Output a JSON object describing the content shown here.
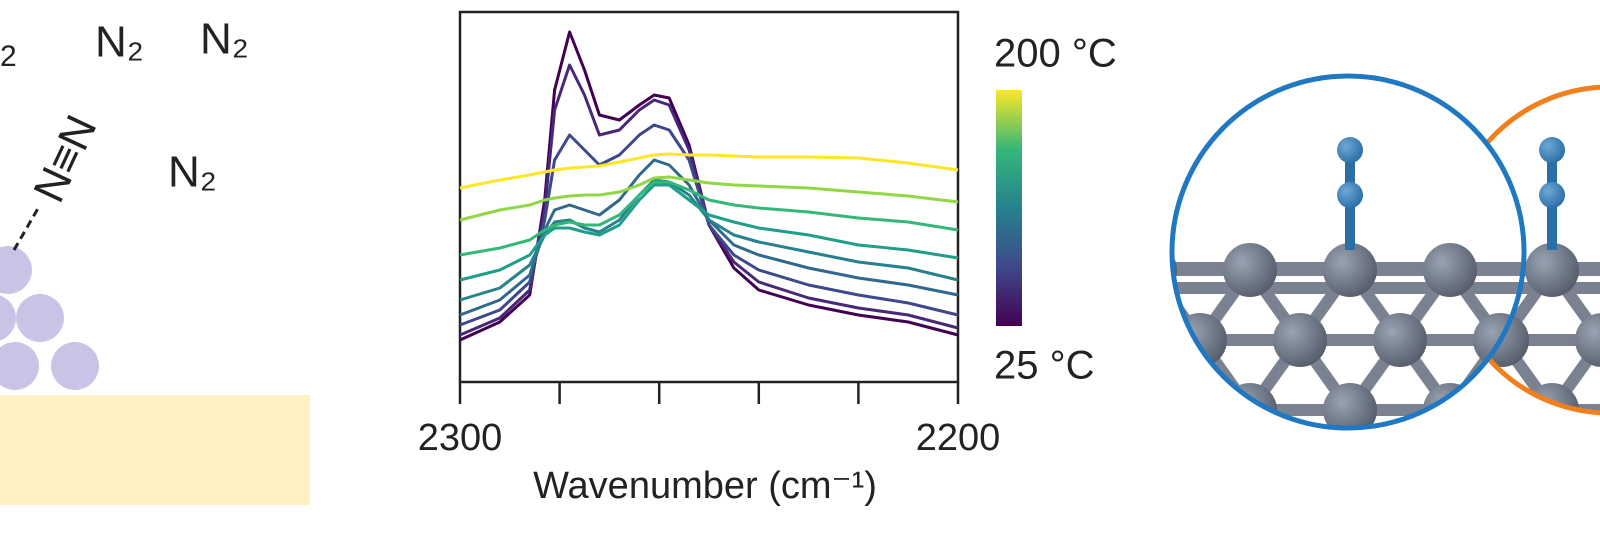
{
  "chart_data": {
    "type": "line",
    "xlabel": "Wavenumber (cm⁻¹)",
    "x": [
      2300,
      2292,
      2286,
      2283,
      2281,
      2278,
      2275,
      2272,
      2268,
      2264,
      2261,
      2258,
      2254,
      2250,
      2245,
      2240,
      2230,
      2220,
      2210,
      2200
    ],
    "xlim": [
      2300,
      2200
    ],
    "xticks": [
      2300,
      2200
    ],
    "xminorticks": [
      2280,
      2260,
      2240,
      2220
    ],
    "ylim": [
      0,
      370
    ],
    "series": [
      {
        "color": "#440154",
        "values": [
          42,
          60,
          87,
          182,
          292,
          350,
          312,
          267,
          262,
          277,
          287,
          284,
          237,
          157,
          114,
          92,
          77,
          67,
          60,
          47
        ]
      },
      {
        "color": "#482878",
        "values": [
          47,
          64,
          92,
          172,
          272,
          317,
          287,
          247,
          252,
          272,
          282,
          277,
          232,
          157,
          120,
          100,
          84,
          74,
          67,
          54
        ]
      },
      {
        "color": "#3e4989",
        "values": [
          57,
          72,
          100,
          162,
          222,
          247,
          232,
          217,
          227,
          247,
          257,
          252,
          222,
          157,
          127,
          112,
          97,
          87,
          79,
          67
        ]
      },
      {
        "color": "#31688e",
        "values": [
          67,
          82,
          107,
          152,
          172,
          177,
          172,
          167,
          182,
          207,
          222,
          217,
          197,
          162,
          137,
          127,
          114,
          104,
          97,
          87
        ]
      },
      {
        "color": "#26828e",
        "values": [
          82,
          94,
          117,
          147,
          160,
          162,
          154,
          150,
          162,
          187,
          202,
          200,
          187,
          162,
          147,
          140,
          130,
          120,
          114,
          102
        ]
      },
      {
        "color": "#1f9e89",
        "values": [
          102,
          112,
          127,
          147,
          154,
          154,
          150,
          147,
          157,
          182,
          197,
          197,
          182,
          167,
          160,
          154,
          147,
          137,
          132,
          124
        ]
      },
      {
        "color": "#35b779",
        "values": [
          127,
          134,
          142,
          152,
          157,
          160,
          157,
          157,
          167,
          187,
          200,
          200,
          192,
          182,
          177,
          174,
          170,
          164,
          160,
          152
        ]
      },
      {
        "color": "#90d743",
        "values": [
          162,
          172,
          177,
          182,
          184,
          186,
          187,
          187,
          190,
          197,
          204,
          205,
          202,
          199,
          197,
          196,
          194,
          190,
          186,
          180
        ]
      },
      {
        "color": "#fde725",
        "values": [
          194,
          202,
          207,
          210,
          212,
          214,
          215,
          216,
          220,
          224,
          227,
          228,
          227,
          227,
          226,
          225,
          225,
          224,
          219,
          212
        ]
      }
    ],
    "colorbar": {
      "colors": [
        "#440154",
        "#3e4989",
        "#26828e",
        "#35b779",
        "#fde725"
      ],
      "top_label": "200 °C",
      "bottom_label": "25 °C"
    }
  },
  "illustration": {
    "labels": [
      "2",
      "N₂",
      "N₂",
      "N₂"
    ],
    "bond_label": "N≡N"
  }
}
